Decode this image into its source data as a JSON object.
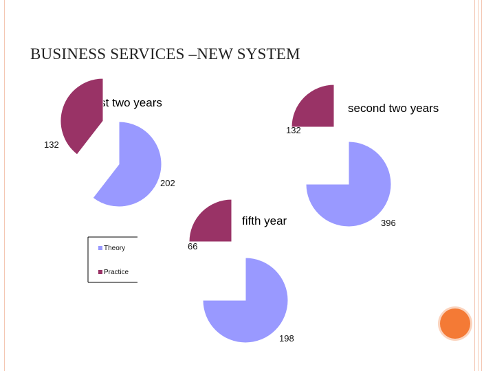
{
  "slide": {
    "title": "BUSINESS SERVICES –NEW SYSTEM"
  },
  "colors": {
    "theory": "#9999ff",
    "practice": "#993366",
    "accent": "#f47a35",
    "border": "#f4c7b3"
  },
  "legend": [
    "Theory",
    "Practice"
  ],
  "chart_data": [
    {
      "type": "pie",
      "title": "first two years",
      "categories": [
        "Theory",
        "Practice"
      ],
      "values": [
        202,
        132
      ]
    },
    {
      "type": "pie",
      "title": "second two years",
      "categories": [
        "Theory",
        "Practice"
      ],
      "values": [
        396,
        132
      ]
    },
    {
      "type": "pie",
      "title": "fifth year",
      "categories": [
        "Theory",
        "Practice"
      ],
      "values": [
        198,
        66
      ]
    }
  ]
}
